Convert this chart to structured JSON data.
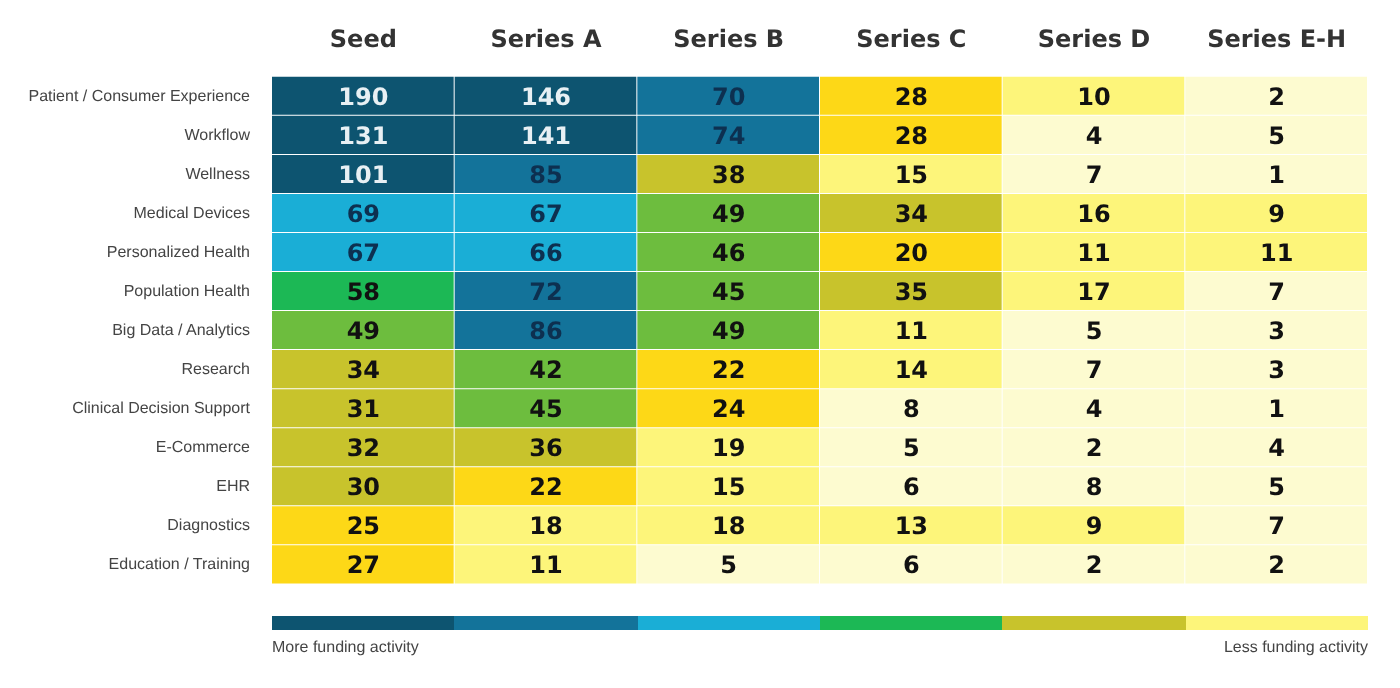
{
  "chart_data": {
    "type": "heatmap",
    "categories": [
      "Seed",
      "Series A",
      "Series B",
      "Series C",
      "Series D",
      "Series E-H"
    ],
    "y_categories": [
      "Patient / Consumer Experience",
      "Workflow",
      "Wellness",
      "Medical Devices",
      "Personalized Health",
      "Population Health",
      "Big Data / Analytics",
      "Research",
      "Clinical Decision Support",
      "E-Commerce",
      "EHR",
      "Diagnostics",
      "Education / Training"
    ],
    "cells": [
      [
        190,
        146,
        70,
        28,
        10,
        2
      ],
      [
        131,
        141,
        74,
        28,
        4,
        5
      ],
      [
        101,
        85,
        38,
        15,
        7,
        1
      ],
      [
        69,
        67,
        49,
        34,
        16,
        9
      ],
      [
        67,
        66,
        46,
        20,
        11,
        11
      ],
      [
        58,
        72,
        45,
        35,
        17,
        7
      ],
      [
        49,
        86,
        49,
        11,
        5,
        3
      ],
      [
        34,
        42,
        22,
        14,
        7,
        3
      ],
      [
        31,
        45,
        24,
        8,
        4,
        1
      ],
      [
        32,
        36,
        19,
        5,
        2,
        4
      ],
      [
        30,
        22,
        15,
        6,
        8,
        5
      ],
      [
        25,
        18,
        18,
        13,
        9,
        7
      ],
      [
        27,
        11,
        5,
        6,
        2,
        2
      ]
    ],
    "data_labels": true,
    "annotations": [
      "More funding activity",
      "Less funding activity"
    ]
  }
}
